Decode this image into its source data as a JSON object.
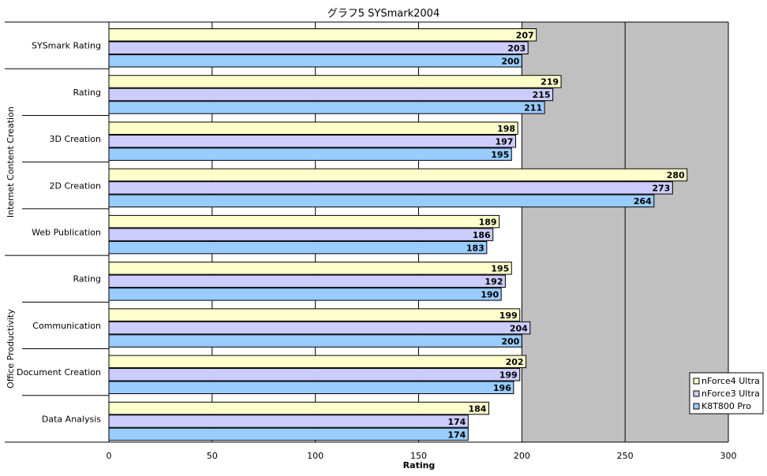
{
  "chart_data": {
    "type": "bar",
    "orientation": "horizontal",
    "title": "グラフ5  SYSmark2004",
    "xlabel": "Rating",
    "xlim": [
      0,
      300
    ],
    "x_ticks": [
      "0",
      "50",
      "100",
      "150",
      "200",
      "250",
      "300"
    ],
    "grid": "vertical major gridlines every 50",
    "legend_position": "bottom-right",
    "categories": [
      "SYSmark Rating",
      "Rating",
      "3D Creation",
      "2D Creation",
      "Web Publication",
      "Rating",
      "Communication",
      "Document Creation",
      "Data Analysis"
    ],
    "groups": [
      {
        "label": "Internet Content Creation",
        "categories": [
          "Rating",
          "3D Creation",
          "2D Creation",
          "Web Publication"
        ]
      },
      {
        "label": "Office Productivity",
        "categories": [
          "Rating",
          "Communication",
          "Document Creation",
          "Data Analysis"
        ]
      }
    ],
    "series": [
      {
        "name": "nForce4 Ultra",
        "color": "#ffffcc",
        "values": [
          207,
          219,
          198,
          280,
          189,
          195,
          199,
          202,
          184
        ]
      },
      {
        "name": "nForce3 Ultra",
        "color": "#ccccff",
        "values": [
          203,
          215,
          197,
          273,
          186,
          192,
          204,
          199,
          174
        ]
      },
      {
        "name": "K8T800 Pro",
        "color": "#99ccff",
        "values": [
          200,
          211,
          195,
          264,
          183,
          190,
          200,
          196,
          174
        ]
      }
    ],
    "plot_background": [
      "#ffffff",
      "#c0c0c0"
    ]
  }
}
